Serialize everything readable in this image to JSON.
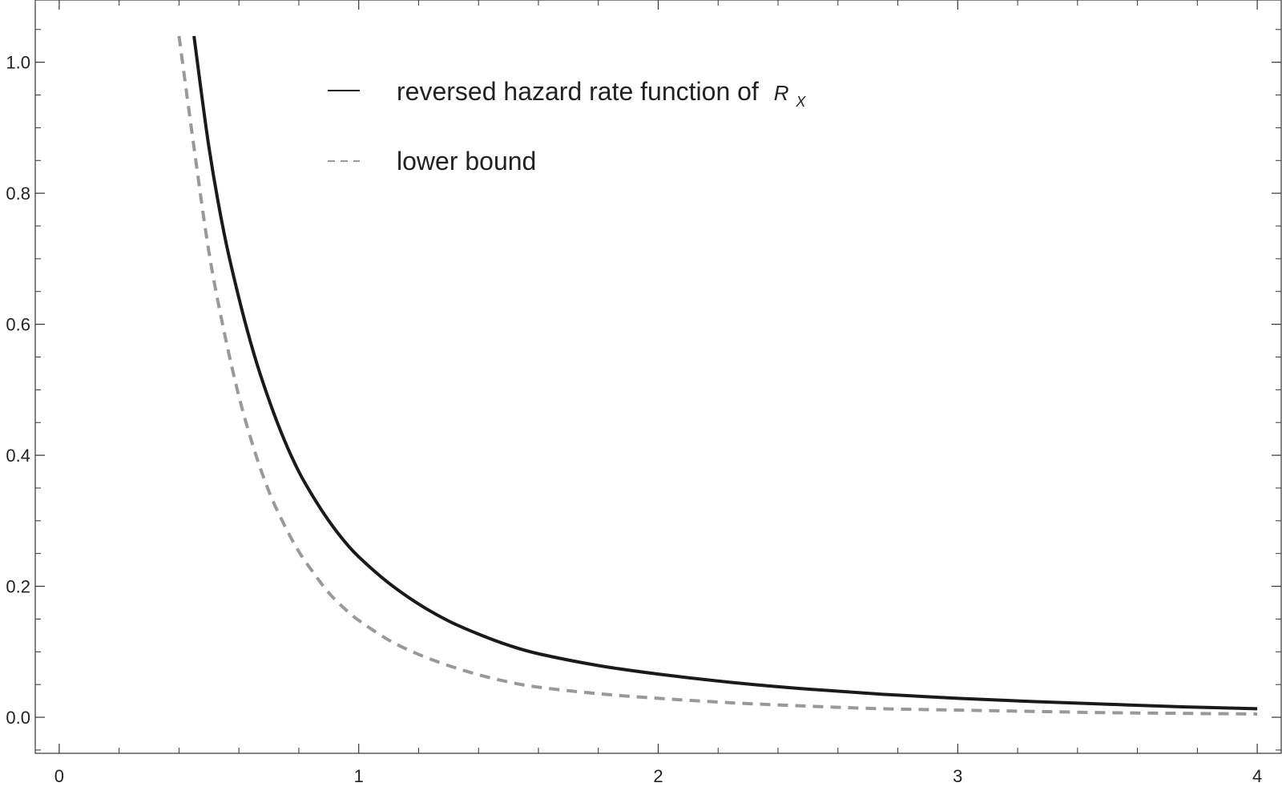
{
  "chart_data": {
    "type": "line",
    "title": "",
    "xlabel": "",
    "ylabel": "",
    "xlim": [
      -0.08,
      4.08
    ],
    "ylim": [
      -0.055,
      1.095
    ],
    "x_ticks": [
      0,
      1,
      2,
      3,
      4
    ],
    "x_tick_labels": [
      "0",
      "1",
      "2",
      "3",
      "4"
    ],
    "y_ticks": [
      0.0,
      0.2,
      0.4,
      0.6,
      0.8,
      1.0
    ],
    "y_tick_labels": [
      "0.0",
      "0.2",
      "0.4",
      "0.6",
      "0.8",
      "1.0"
    ],
    "grid": false,
    "frame": true,
    "legend_position": "top-center",
    "colors": {
      "solid": "#1a1a1a",
      "dashed": "#999999",
      "axes": "#333333"
    },
    "series": [
      {
        "name": "reversed hazard rate function of",
        "name_symbol": "R",
        "name_subscript": "X",
        "style": "solid",
        "x": [
          0.45,
          0.5,
          0.55,
          0.6,
          0.65,
          0.7,
          0.75,
          0.8,
          0.85,
          0.9,
          0.95,
          1.0,
          1.1,
          1.2,
          1.3,
          1.4,
          1.5,
          1.6,
          1.8,
          2.0,
          2.25,
          2.5,
          2.75,
          3.0,
          3.25,
          3.5,
          3.75,
          4.0
        ],
        "y": [
          1.04,
          0.87,
          0.74,
          0.64,
          0.555,
          0.485,
          0.425,
          0.375,
          0.335,
          0.3,
          0.27,
          0.245,
          0.205,
          0.173,
          0.147,
          0.127,
          0.11,
          0.097,
          0.079,
          0.066,
          0.053,
          0.043,
          0.035,
          0.029,
          0.024,
          0.02,
          0.016,
          0.013
        ]
      },
      {
        "name": "lower bound",
        "style": "dashed",
        "x": [
          0.4,
          0.45,
          0.5,
          0.55,
          0.6,
          0.65,
          0.7,
          0.75,
          0.8,
          0.85,
          0.9,
          0.95,
          1.0,
          1.1,
          1.2,
          1.3,
          1.4,
          1.5,
          1.6,
          1.8,
          2.0,
          2.25,
          2.5,
          2.75,
          3.0,
          3.25,
          3.5,
          3.75,
          4.0
        ],
        "y": [
          1.04,
          0.87,
          0.71,
          0.59,
          0.49,
          0.41,
          0.345,
          0.295,
          0.253,
          0.22,
          0.19,
          0.167,
          0.148,
          0.118,
          0.096,
          0.079,
          0.065,
          0.054,
          0.046,
          0.036,
          0.029,
          0.022,
          0.017,
          0.013,
          0.011,
          0.009,
          0.007,
          0.006,
          0.005
        ]
      }
    ]
  }
}
